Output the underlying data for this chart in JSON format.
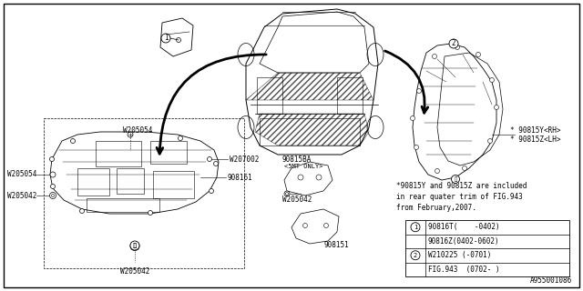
{
  "bg_color": "#ffffff",
  "line_color": "#000000",
  "figure_number": "A955001086",
  "note_text": "*90815Y and 90815Z are included\nin rear quater trim of FIG.943\nfrom February,2007.",
  "table_rows": [
    [
      "1",
      "90816T(    -0402)"
    ],
    [
      "",
      "90816Z(0402-0602)"
    ],
    [
      "2",
      "W210225 (-0701)"
    ],
    [
      "",
      "FIG.943  (0702- )"
    ]
  ],
  "fs": 5.5,
  "fs_tiny": 5.0
}
